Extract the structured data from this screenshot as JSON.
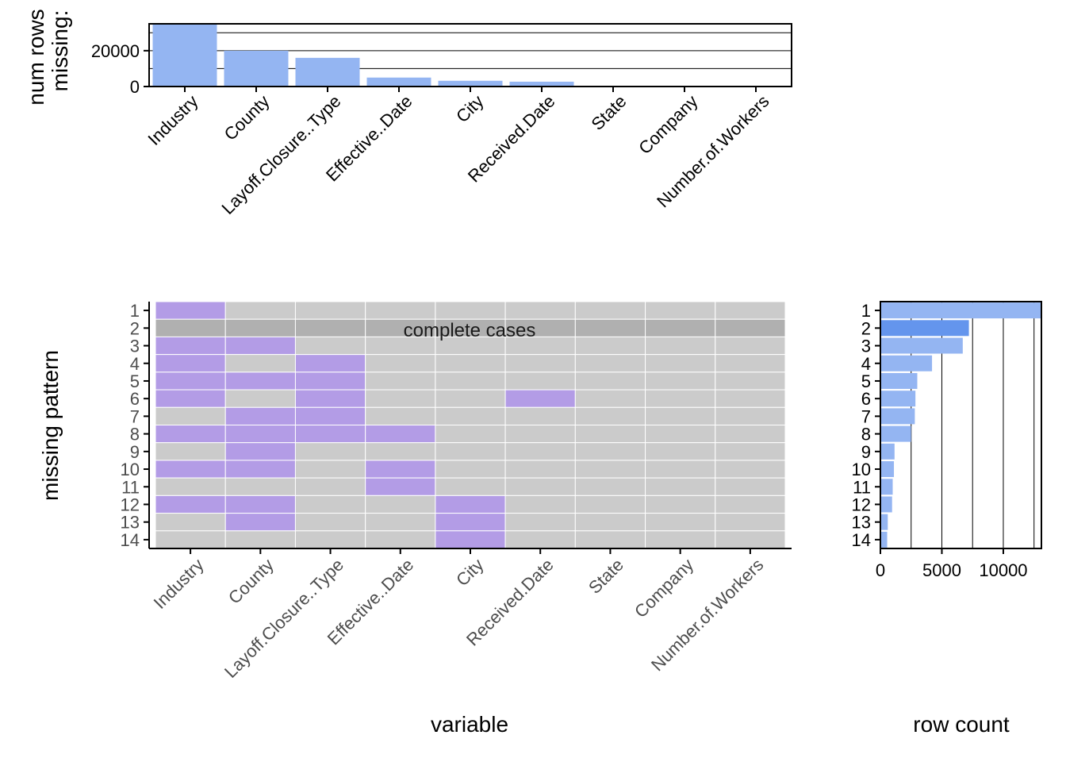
{
  "chart_data": [
    {
      "type": "bar",
      "name": "missing-counts",
      "ylabel_lines": [
        "num rows",
        "missing:"
      ],
      "categories": [
        "Industry",
        "County",
        "Layoff.Closure..Type",
        "Effective..Date",
        "City",
        "Received.Date",
        "State",
        "Company",
        "Number.of.Workers"
      ],
      "values": [
        35000,
        20000,
        16000,
        5000,
        3200,
        2700,
        0,
        0,
        0
      ],
      "ylim": [
        0,
        35000
      ],
      "yticks": [
        0,
        20000
      ],
      "ytick_labels": [
        "0",
        "20000"
      ],
      "grid": [
        10000,
        20000,
        30000
      ]
    },
    {
      "type": "heatmap",
      "name": "missing-patterns",
      "xlabel": "variable",
      "ylabel": "missing pattern",
      "variables": [
        "Industry",
        "County",
        "Layoff.Closure..Type",
        "Effective..Date",
        "City",
        "Received.Date",
        "State",
        "Company",
        "Number.of.Workers"
      ],
      "pattern_labels": [
        "1",
        "2",
        "3",
        "4",
        "5",
        "6",
        "7",
        "8",
        "9",
        "10",
        "11",
        "12",
        "13",
        "14"
      ],
      "complete_pattern_index": 1,
      "complete_label": "complete cases",
      "patterns": [
        [
          1,
          0,
          0,
          0,
          0,
          0,
          0,
          0,
          0
        ],
        [
          0,
          0,
          0,
          0,
          0,
          0,
          0,
          0,
          0
        ],
        [
          1,
          1,
          0,
          0,
          0,
          0,
          0,
          0,
          0
        ],
        [
          1,
          0,
          1,
          0,
          0,
          0,
          0,
          0,
          0
        ],
        [
          1,
          1,
          1,
          0,
          0,
          0,
          0,
          0,
          0
        ],
        [
          1,
          0,
          1,
          0,
          0,
          1,
          0,
          0,
          0
        ],
        [
          0,
          1,
          1,
          0,
          0,
          0,
          0,
          0,
          0
        ],
        [
          1,
          1,
          1,
          1,
          0,
          0,
          0,
          0,
          0
        ],
        [
          0,
          1,
          0,
          0,
          0,
          0,
          0,
          0,
          0
        ],
        [
          1,
          1,
          0,
          1,
          0,
          0,
          0,
          0,
          0
        ],
        [
          0,
          0,
          0,
          1,
          0,
          0,
          0,
          0,
          0
        ],
        [
          1,
          1,
          0,
          0,
          1,
          0,
          0,
          0,
          0
        ],
        [
          0,
          1,
          0,
          0,
          1,
          0,
          0,
          0,
          0
        ],
        [
          0,
          0,
          0,
          0,
          1,
          0,
          0,
          0,
          0
        ]
      ],
      "colors": {
        "missing": "#b39ce6",
        "observed": "#cbcbcb",
        "complete": "#b0b0b0"
      }
    },
    {
      "type": "bar",
      "orientation": "horizontal",
      "name": "row-counts",
      "xlabel": "row count",
      "categories": [
        "1",
        "2",
        "3",
        "4",
        "5",
        "6",
        "7",
        "8",
        "9",
        "10",
        "11",
        "12",
        "13",
        "14"
      ],
      "values": [
        13100,
        7200,
        6700,
        4200,
        3000,
        2850,
        2800,
        2500,
        1150,
        1100,
        1000,
        950,
        600,
        550
      ],
      "highlight_index": 1,
      "xlim": [
        0,
        13100
      ],
      "xticks": [
        0,
        5000,
        10000
      ],
      "xtick_labels": [
        "0",
        "5000",
        "10000"
      ],
      "grid": [
        2500,
        5000,
        7500,
        10000,
        12500
      ],
      "colors": {
        "bar": "#94b5f2",
        "highlight": "#6495ed"
      }
    }
  ],
  "colors": {
    "bar": "#94b5f2",
    "axis": "#000000",
    "tick_text": "#4d4d4d"
  }
}
